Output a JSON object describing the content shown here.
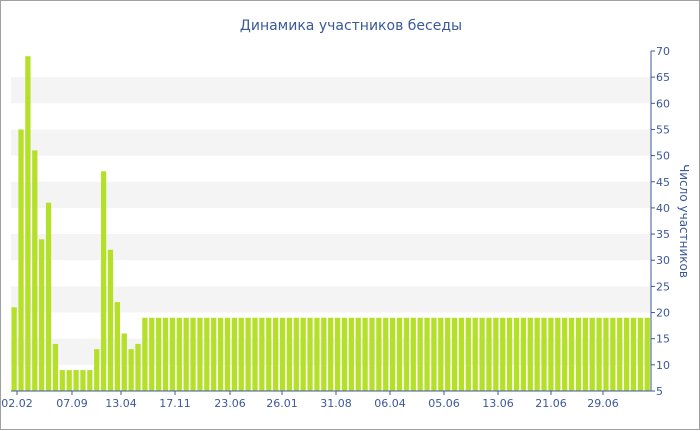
{
  "chart_data": {
    "type": "bar",
    "title": "Динамика участников беседы",
    "ylabel": "Число участников",
    "xlabel": "",
    "ylim": [
      5,
      70
    ],
    "y_ticks": [
      5,
      10,
      15,
      20,
      25,
      30,
      35,
      40,
      45,
      50,
      55,
      60,
      65,
      70
    ],
    "y_axis_position": "right",
    "x_tick_labels": [
      "02.02",
      "07.09",
      "13.04",
      "17.11",
      "23.06",
      "26.01",
      "31.08",
      "06.04",
      "05.06",
      "13.06",
      "21.06",
      "29.06"
    ],
    "bar_color": "#b5e02a",
    "band_color": "#f4f4f4",
    "values": [
      21,
      55,
      69,
      51,
      34,
      41,
      14,
      9,
      9,
      9,
      9,
      9,
      13,
      47,
      32,
      22,
      16,
      13,
      14,
      19,
      19,
      19,
      19,
      19,
      19,
      19,
      19,
      19,
      19,
      19,
      19,
      19,
      19,
      19,
      19,
      19,
      19,
      19,
      19,
      19,
      19,
      19,
      19,
      19,
      19,
      19,
      19,
      19,
      19,
      19,
      19,
      19,
      19,
      19,
      19,
      19,
      19,
      19,
      19,
      19,
      19,
      19,
      19,
      19,
      19,
      19,
      19,
      19,
      19,
      19,
      19,
      19,
      19,
      19,
      19,
      19,
      19,
      19,
      19,
      19,
      19,
      19,
      19,
      19,
      19,
      19,
      19,
      19,
      19,
      19,
      19,
      19,
      19
    ]
  }
}
